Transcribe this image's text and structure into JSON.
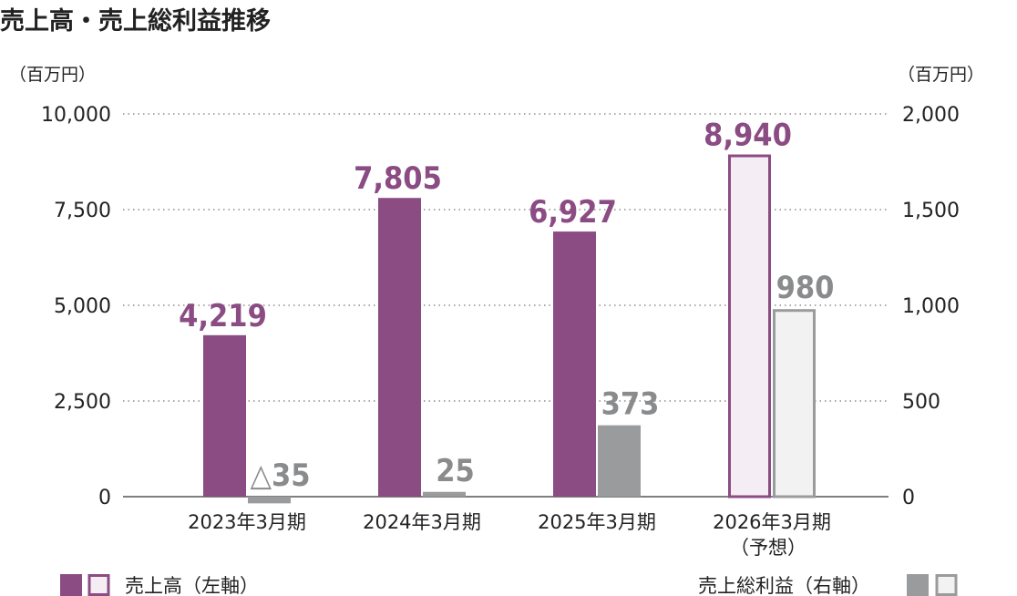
{
  "chart_data": {
    "type": "bar",
    "title": "売上高・売上総利益推移",
    "categories": [
      "2023年3月期",
      "2024年3月期",
      "2025年3月期",
      "2026年3月期"
    ],
    "category_notes": [
      "",
      "",
      "",
      "（予想）"
    ],
    "left_axis": {
      "unit": "（百万円）",
      "ylim": [
        0,
        10000
      ],
      "ticks": [
        0,
        2500,
        5000,
        7500,
        10000
      ],
      "tick_labels": [
        "0",
        "2,500",
        "5,000",
        "7,500",
        "10,000"
      ]
    },
    "right_axis": {
      "unit": "（百万円）",
      "ylim": [
        0,
        2000
      ],
      "ticks": [
        0,
        500,
        1000,
        1500,
        2000
      ],
      "tick_labels": [
        "0",
        "500",
        "1,000",
        "1,500",
        "2,000"
      ]
    },
    "grid": "horizontal dotted",
    "forecast_index": 3,
    "series": [
      {
        "name": "売上高（左軸）",
        "axis": "left",
        "values": [
          4219,
          7805,
          6927,
          8940
        ],
        "labels": [
          "4,219",
          "7,805",
          "6,927",
          "8,940"
        ],
        "color": "#8b4c84",
        "forecast_fill": "#f4eef4"
      },
      {
        "name": "売上総利益（右軸）",
        "axis": "right",
        "values": [
          -35,
          25,
          373,
          980
        ],
        "labels": [
          "△35",
          "25",
          "373",
          "980"
        ],
        "color": "#9a9b9d",
        "forecast_fill": "#f2f2f2"
      }
    ],
    "legend": "bottom",
    "label_colors": {
      "sales": "#8b4c84",
      "profit": "#8a8b8d"
    }
  }
}
